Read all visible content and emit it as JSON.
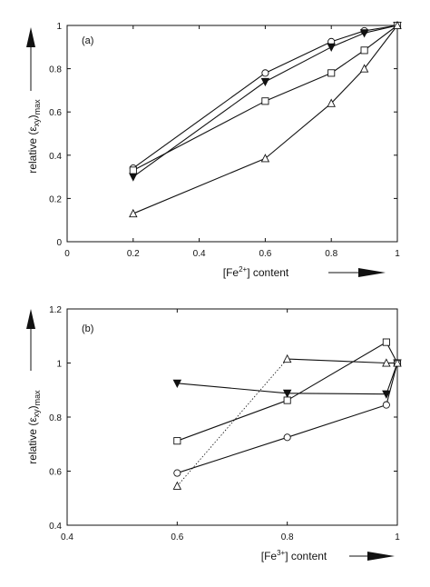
{
  "chart_data": [
    {
      "type": "line",
      "panel_label": "(a)",
      "xlabel": "[Fe",
      "xlabel_sup": "2+",
      "xlabel_suffix": "] content",
      "ylabel": "relative  (ε",
      "ylabel_sub": "xy",
      "ylabel_suffix": ")",
      "ylabel_sub2": "max",
      "xlim": [
        0,
        1
      ],
      "ylim": [
        0,
        1
      ],
      "xticks": [
        "0",
        "0.2",
        "0.4",
        "0.6",
        "0.8",
        "1"
      ],
      "xtick_values": [
        0,
        0.2,
        0.4,
        0.6,
        0.8,
        1
      ],
      "yticks": [
        "0",
        "0.2",
        "0.4",
        "0.6",
        "0.8",
        "1"
      ],
      "ytick_values": [
        0,
        0.2,
        0.4,
        0.6,
        0.8,
        1
      ],
      "grid": false,
      "series": [
        {
          "marker": "circle",
          "line": "solid",
          "points": [
            [
              0.2,
              0.34
            ],
            [
              0.6,
              0.78
            ],
            [
              0.8,
              0.925
            ],
            [
              0.9,
              0.975
            ],
            [
              1.0,
              1.0
            ]
          ]
        },
        {
          "marker": "triangle-down-filled",
          "line": "solid",
          "points": [
            [
              0.2,
              0.3
            ],
            [
              0.6,
              0.74
            ],
            [
              0.8,
              0.9
            ],
            [
              0.9,
              0.965
            ],
            [
              1.0,
              1.0
            ]
          ]
        },
        {
          "marker": "square",
          "line": "solid",
          "points": [
            [
              0.2,
              0.33
            ],
            [
              0.6,
              0.65
            ],
            [
              0.8,
              0.78
            ],
            [
              0.9,
              0.885
            ],
            [
              1.0,
              1.0
            ]
          ]
        },
        {
          "marker": "triangle-up",
          "line": "solid",
          "points": [
            [
              0.2,
              0.13
            ],
            [
              0.6,
              0.385
            ],
            [
              0.8,
              0.64
            ],
            [
              0.9,
              0.8
            ],
            [
              1.0,
              1.0
            ]
          ]
        }
      ]
    },
    {
      "type": "line",
      "panel_label": "(b)",
      "xlabel": "[Fe",
      "xlabel_sup": "3+",
      "xlabel_suffix": "] content",
      "ylabel": "relative  (ε",
      "ylabel_sub": "xy",
      "ylabel_suffix": ")",
      "ylabel_sub2": "max",
      "xlim": [
        0.4,
        1
      ],
      "ylim": [
        0.4,
        1.2
      ],
      "xticks": [
        "0.4",
        "0.6",
        "0.8",
        "1"
      ],
      "xtick_values": [
        0.4,
        0.6,
        0.8,
        1
      ],
      "yticks": [
        "0.4",
        "0.6",
        "0.8",
        "1",
        "1.2"
      ],
      "ytick_values": [
        0.4,
        0.6,
        0.8,
        1,
        1.2
      ],
      "grid": false,
      "series": [
        {
          "marker": "triangle-down-filled",
          "line": "solid",
          "points": [
            [
              0.6,
              0.925
            ],
            [
              0.8,
              0.888
            ],
            [
              0.98,
              0.885
            ],
            [
              1.0,
              1.0
            ]
          ]
        },
        {
          "marker": "square",
          "line": "solid",
          "points": [
            [
              0.6,
              0.712
            ],
            [
              0.8,
              0.862
            ],
            [
              0.98,
              1.077
            ],
            [
              1.0,
              1.0
            ]
          ]
        },
        {
          "marker": "circle",
          "line": "solid",
          "points": [
            [
              0.6,
              0.593
            ],
            [
              0.8,
              0.725
            ],
            [
              0.98,
              0.845
            ],
            [
              1.0,
              1.0
            ]
          ]
        },
        {
          "marker": "triangle-up",
          "line": "dotted-then-solid",
          "points": [
            [
              0.6,
              0.545
            ],
            [
              0.8,
              1.015
            ],
            [
              0.98,
              1.0
            ],
            [
              1.0,
              1.0
            ]
          ]
        }
      ]
    }
  ]
}
